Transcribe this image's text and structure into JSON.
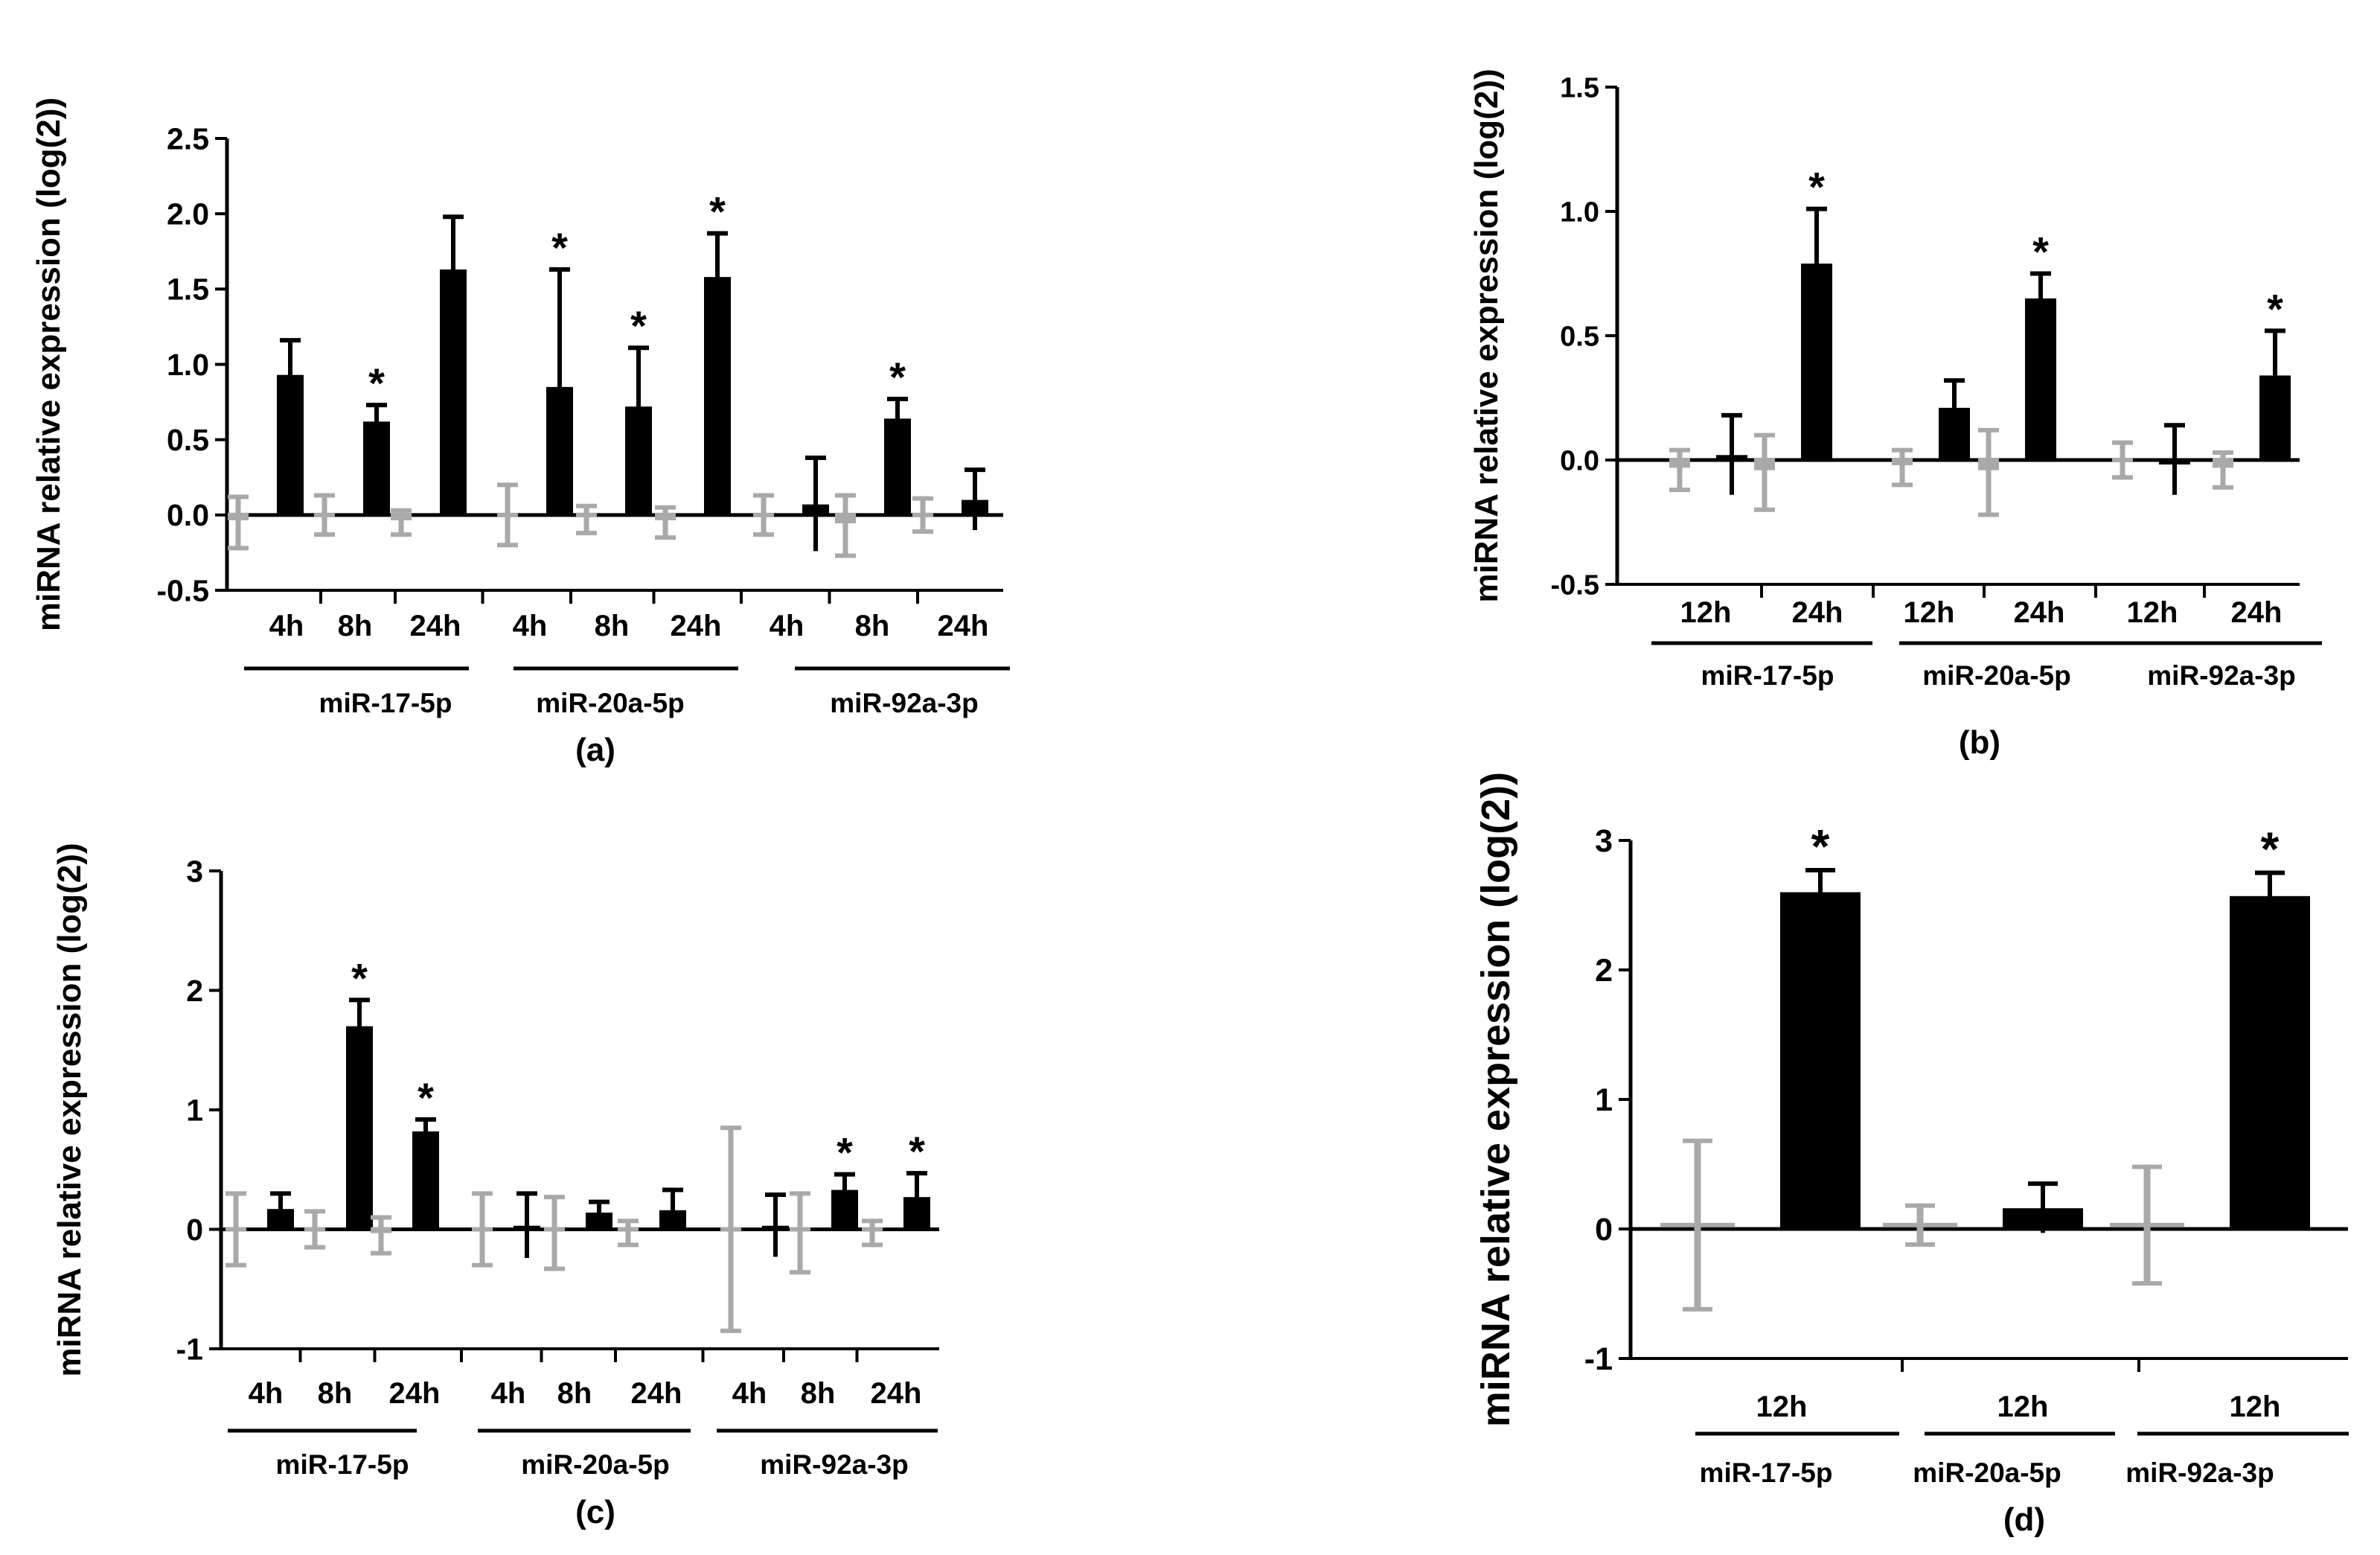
{
  "colors": {
    "control": "#a9a9a9",
    "treated": "#000000",
    "axis": "#000000",
    "background": "#ffffff"
  },
  "chart_data": [
    {
      "id": "a",
      "type": "bar",
      "caption": "(a)",
      "ylabel": "miRNA relative expression (log(2))",
      "ylim": [
        -0.5,
        2.5
      ],
      "yticks": [
        -0.5,
        0.0,
        0.5,
        1.0,
        1.5,
        2.0,
        2.5
      ],
      "ytick_labels": [
        "-0.5",
        "0.0",
        "0.5",
        "1.0",
        "1.5",
        "2.0",
        "2.5"
      ],
      "groups": [
        {
          "name": "miR-17-5p",
          "timepoints": [
            {
              "label": "4h",
              "control": {
                "mean": -0.05,
                "err": 0.17
              },
              "treated": {
                "mean": 0.93,
                "err": 0.23
              },
              "sig": false
            },
            {
              "label": "8h",
              "control": {
                "mean": 0.0,
                "err": 0.13
              },
              "treated": {
                "mean": 0.62,
                "err": 0.11
              },
              "sig": true
            },
            {
              "label": "24h",
              "control": {
                "mean": -0.05,
                "err": 0.08
              },
              "treated": {
                "mean": 1.63,
                "err": 0.35
              },
              "sig": false
            }
          ]
        },
        {
          "name": "miR-20a-5p",
          "timepoints": [
            {
              "label": "4h",
              "control": {
                "mean": 0.0,
                "err": 0.2
              },
              "treated": {
                "mean": 0.85,
                "err": 0.78
              },
              "sig": true
            },
            {
              "label": "8h",
              "control": {
                "mean": -0.03,
                "err": 0.09
              },
              "treated": {
                "mean": 0.72,
                "err": 0.39
              },
              "sig": true
            },
            {
              "label": "24h",
              "control": {
                "mean": -0.05,
                "err": 0.1
              },
              "treated": {
                "mean": 1.58,
                "err": 0.29
              },
              "sig": true
            }
          ]
        },
        {
          "name": "miR-92a-3p",
          "timepoints": [
            {
              "label": "4h",
              "control": {
                "mean": 0.0,
                "err": 0.13
              },
              "treated": {
                "mean": 0.07,
                "err": 0.31
              },
              "sig": false
            },
            {
              "label": "8h",
              "control": {
                "mean": -0.07,
                "err": 0.2
              },
              "treated": {
                "mean": 0.64,
                "err": 0.13
              },
              "sig": true
            },
            {
              "label": "24h",
              "control": {
                "mean": 0.0,
                "err": 0.11
              },
              "treated": {
                "mean": 0.1,
                "err": 0.2
              },
              "sig": false
            }
          ]
        }
      ]
    },
    {
      "id": "b",
      "type": "bar",
      "caption": "(b)",
      "ylabel": "miRNA relative expression  (log(2))",
      "ylim": [
        -0.5,
        1.5
      ],
      "yticks": [
        -0.5,
        0.0,
        0.5,
        1.0,
        1.5
      ],
      "ytick_labels": [
        "-0.5",
        "0.0",
        "0.5",
        "1.0",
        "1.5"
      ],
      "groups": [
        {
          "name": "miR-17-5p",
          "timepoints": [
            {
              "label": "12h",
              "control": {
                "mean": -0.04,
                "err": 0.08
              },
              "treated": {
                "mean": 0.02,
                "err": 0.16
              },
              "sig": false
            },
            {
              "label": "24h",
              "control": {
                "mean": -0.05,
                "err": 0.15
              },
              "treated": {
                "mean": 0.79,
                "err": 0.22
              },
              "sig": true
            }
          ]
        },
        {
          "name": "miR-20a-5p",
          "timepoints": [
            {
              "label": "12h",
              "control": {
                "mean": -0.03,
                "err": 0.07
              },
              "treated": {
                "mean": 0.21,
                "err": 0.11
              },
              "sig": false
            },
            {
              "label": "24h",
              "control": {
                "mean": -0.05,
                "err": 0.17
              },
              "treated": {
                "mean": 0.65,
                "err": 0.1
              },
              "sig": true
            }
          ]
        },
        {
          "name": "miR-92a-3p",
          "timepoints": [
            {
              "label": "12h",
              "control": {
                "mean": 0.0,
                "err": 0.07
              },
              "treated": {
                "mean": 0.0,
                "err": 0.14
              },
              "sig": false
            },
            {
              "label": "24h",
              "control": {
                "mean": -0.04,
                "err": 0.07
              },
              "treated": {
                "mean": 0.34,
                "err": 0.18
              },
              "sig": true
            }
          ]
        }
      ]
    },
    {
      "id": "c",
      "type": "bar",
      "caption": "(c)",
      "ylabel": "miRNA relative expression (log(2))",
      "ylim": [
        -1,
        3
      ],
      "yticks": [
        -1,
        0,
        1,
        2,
        3
      ],
      "ytick_labels": [
        "-1",
        "0",
        "1",
        "2",
        "3"
      ],
      "groups": [
        {
          "name": "miR-17-5p",
          "timepoints": [
            {
              "label": "4h",
              "control": {
                "mean": 0.0,
                "err": 0.3
              },
              "treated": {
                "mean": 0.17,
                "err": 0.13
              },
              "sig": false
            },
            {
              "label": "8h",
              "control": {
                "mean": 0.0,
                "err": 0.15
              },
              "treated": {
                "mean": 1.7,
                "err": 0.22
              },
              "sig": true
            },
            {
              "label": "24h",
              "control": {
                "mean": -0.05,
                "err": 0.15
              },
              "treated": {
                "mean": 0.82,
                "err": 0.1
              },
              "sig": true
            }
          ]
        },
        {
          "name": "miR-20a-5p",
          "timepoints": [
            {
              "label": "4h",
              "control": {
                "mean": 0.0,
                "err": 0.3
              },
              "treated": {
                "mean": 0.03,
                "err": 0.27
              },
              "sig": false
            },
            {
              "label": "8h",
              "control": {
                "mean": -0.03,
                "err": 0.3
              },
              "treated": {
                "mean": 0.14,
                "err": 0.09
              },
              "sig": false
            },
            {
              "label": "24h",
              "control": {
                "mean": -0.03,
                "err": 0.1
              },
              "treated": {
                "mean": 0.16,
                "err": 0.17
              },
              "sig": false
            }
          ]
        },
        {
          "name": "miR-92a-3p",
          "timepoints": [
            {
              "label": "4h",
              "control": {
                "mean": 0.0,
                "err": 0.85
              },
              "treated": {
                "mean": 0.03,
                "err": 0.26
              },
              "sig": false
            },
            {
              "label": "8h",
              "control": {
                "mean": -0.03,
                "err": 0.33
              },
              "treated": {
                "mean": 0.33,
                "err": 0.13
              },
              "sig": true
            },
            {
              "label": "24h",
              "control": {
                "mean": -0.03,
                "err": 0.1
              },
              "treated": {
                "mean": 0.27,
                "err": 0.2
              },
              "sig": true
            }
          ]
        }
      ]
    },
    {
      "id": "d",
      "type": "bar",
      "caption": "(d)",
      "ylabel": "miRNA relative expression (log(2))",
      "ylim": [
        -1,
        3
      ],
      "yticks": [
        -1,
        0,
        1,
        2,
        3
      ],
      "ytick_labels": [
        "-1",
        "0",
        "1",
        "2",
        "3"
      ],
      "groups": [
        {
          "name": "miR-17-5p",
          "timepoints": [
            {
              "label": "12h",
              "control": {
                "mean": 0.03,
                "err": 0.65
              },
              "treated": {
                "mean": 2.6,
                "err": 0.17
              },
              "sig": true
            }
          ]
        },
        {
          "name": "miR-20a-5p",
          "timepoints": [
            {
              "label": "12h",
              "control": {
                "mean": 0.03,
                "err": 0.15
              },
              "treated": {
                "mean": 0.16,
                "err": 0.19
              },
              "sig": false
            }
          ]
        },
        {
          "name": "miR-92a-3p",
          "timepoints": [
            {
              "label": "12h",
              "control": {
                "mean": 0.03,
                "err": 0.45
              },
              "treated": {
                "mean": 2.57,
                "err": 0.18
              },
              "sig": true
            }
          ]
        }
      ]
    }
  ]
}
